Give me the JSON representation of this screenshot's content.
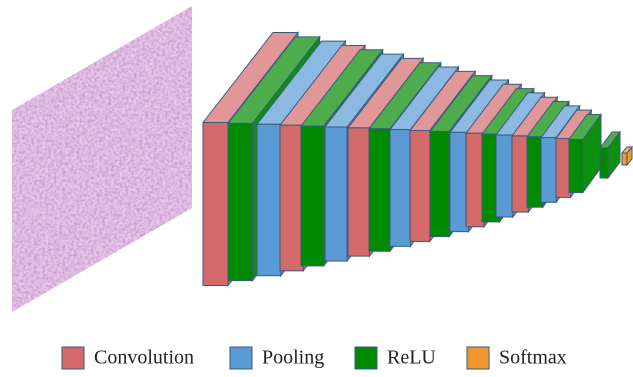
{
  "legend": [
    {
      "label": "Convolution",
      "color": "#d46a6a"
    },
    {
      "label": "Pooling",
      "color": "#5b9bd5"
    },
    {
      "label": "ReLU",
      "color": "#008a00"
    },
    {
      "label": "Softmax",
      "color": "#f0962e"
    }
  ]
}
